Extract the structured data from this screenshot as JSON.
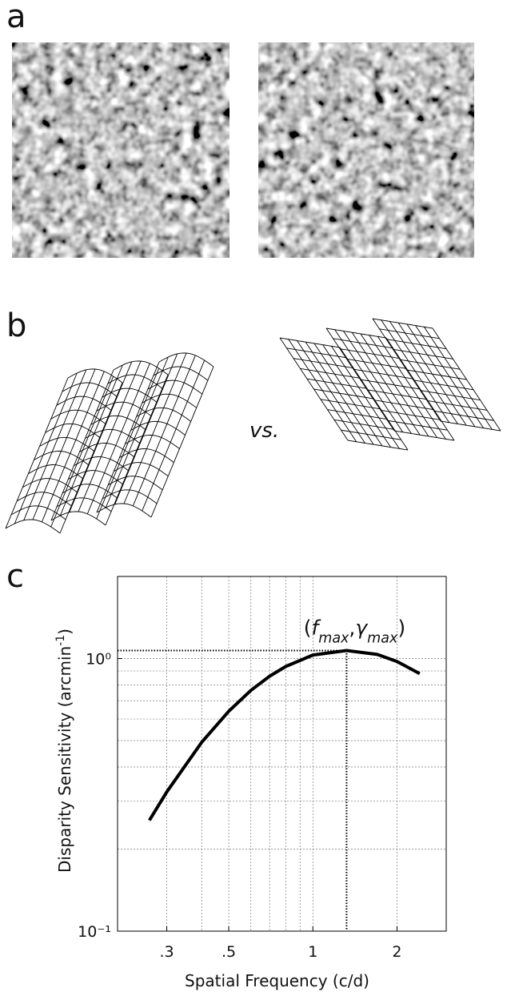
{
  "panels": {
    "a": {
      "label": "a"
    },
    "b": {
      "label": "b",
      "vs": "vs."
    }
  },
  "chart_data": {
    "type": "line",
    "label": "c",
    "xlabel": "Spatial Frequency (c/d)",
    "ylabel_parts": [
      {
        "text": "Disparity Sensitivity (arcmin"
      },
      {
        "text": "-1",
        "sup": true
      },
      {
        "text": ")"
      }
    ],
    "xlog": true,
    "ylog": true,
    "grid": true,
    "color": "#000000",
    "xlim": [
      0.2,
      3
    ],
    "ylim": [
      0.1,
      2
    ],
    "xticks": [
      {
        "value": 0.3,
        "label": ".3"
      },
      {
        "value": 0.5,
        "label": ".5"
      },
      1,
      2
    ],
    "yticks": [
      {
        "value": 0.1,
        "label": "10⁻¹"
      },
      {
        "value": 1,
        "label": "10⁰"
      }
    ],
    "xgrid": [
      0.3,
      0.4,
      0.5,
      0.6,
      0.7,
      0.8,
      0.9,
      1,
      2
    ],
    "ygrid": [
      0.2,
      0.3,
      0.4,
      0.5,
      0.6,
      0.7,
      0.8,
      0.9,
      1
    ],
    "x": [
      0.26,
      0.3,
      0.4,
      0.5,
      0.6,
      0.7,
      0.8,
      1,
      1.32,
      1.7,
      2,
      2.41
    ],
    "values": [
      0.255,
      0.324,
      0.493,
      0.641,
      0.764,
      0.861,
      0.935,
      1.03,
      1.07,
      1.035,
      0.975,
      0.88
    ],
    "annotation": {
      "parts": [
        {
          "text": "("
        },
        {
          "text": "f",
          "italic": true
        },
        {
          "text": "max",
          "sub": true,
          "italic": true
        },
        {
          "text": ","
        },
        {
          "text": "γ",
          "italic": true
        },
        {
          "text": "max",
          "sub": true,
          "italic": true
        },
        {
          "text": ")"
        }
      ],
      "x": 1.32,
      "y": 1.07
    }
  }
}
